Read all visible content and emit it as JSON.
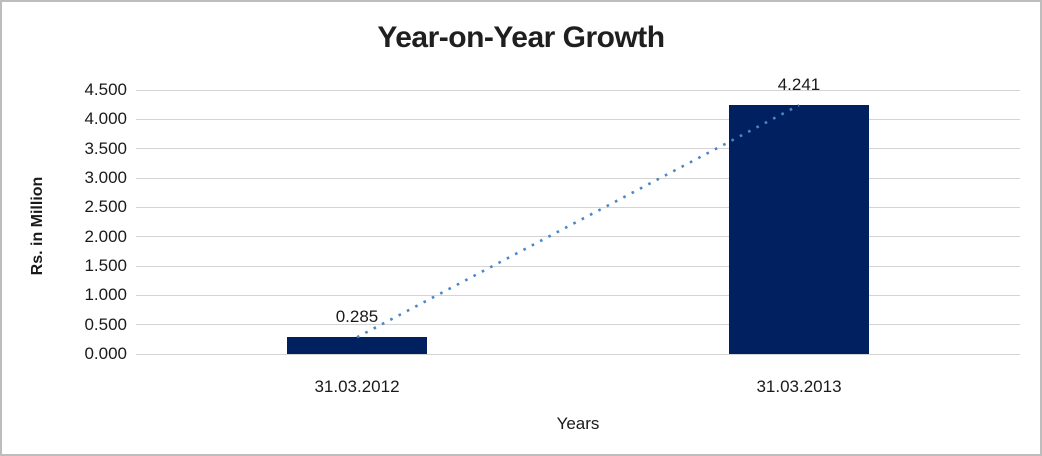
{
  "title": "Year-on-Year Growth",
  "chart_data": {
    "type": "bar",
    "title": "Year-on-Year Growth",
    "categories": [
      "31.03.2012",
      "31.03.2013"
    ],
    "series": [
      {
        "name": "Rs. in Million",
        "values": [
          0.285,
          4.241
        ]
      }
    ],
    "data_labels": [
      "0.285",
      "4.241"
    ],
    "xlabel": "Years",
    "ylabel": "Rs. in Million",
    "ylim": [
      0,
      4.5
    ],
    "ytick_step": 0.5,
    "ytick_labels": [
      "0.000",
      "0.500",
      "1.000",
      "1.500",
      "2.000",
      "2.500",
      "3.000",
      "3.500",
      "4.000",
      "4.500"
    ],
    "grid": "horizontal",
    "legend": "none",
    "trendline": {
      "style": "dotted",
      "connects": [
        "31.03.2012",
        "31.03.2013"
      ]
    }
  },
  "colors": {
    "bar": "#002060",
    "trendline": "#4a86c8",
    "gridline": "#d4d4d4",
    "border": "#bdbdbd",
    "text": "#1a1a1a"
  }
}
